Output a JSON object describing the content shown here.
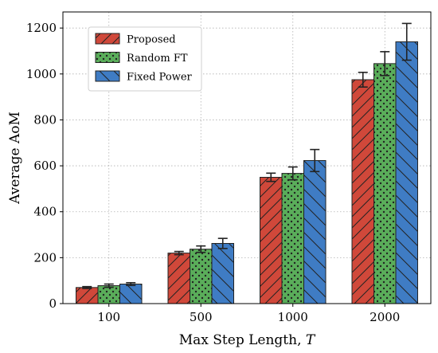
{
  "chart_data": {
    "type": "bar",
    "xlabel": "Max Step Length, ",
    "xlabel_var": "T",
    "ylabel": "Average AoM",
    "categories": [
      "100",
      "500",
      "1000",
      "2000"
    ],
    "ylim": [
      0,
      1270
    ],
    "yticks": [
      0,
      200,
      400,
      600,
      800,
      1000,
      1200
    ],
    "grid": true,
    "legend_position": "top-left",
    "series": [
      {
        "name": "Proposed",
        "values": [
          70,
          220,
          550,
          975
        ],
        "errors": [
          4,
          7,
          18,
          32
        ],
        "color": "#d0483a",
        "hatch": "diag-forward"
      },
      {
        "name": "Random FT",
        "values": [
          78,
          237,
          567,
          1045
        ],
        "errors": [
          7,
          14,
          28,
          52
        ],
        "color": "#5aad5a",
        "hatch": "dots"
      },
      {
        "name": "Fixed Power",
        "values": [
          85,
          262,
          623,
          1140
        ],
        "errors": [
          6,
          22,
          48,
          80
        ],
        "color": "#3f7cc4",
        "hatch": "diag-back"
      }
    ]
  }
}
